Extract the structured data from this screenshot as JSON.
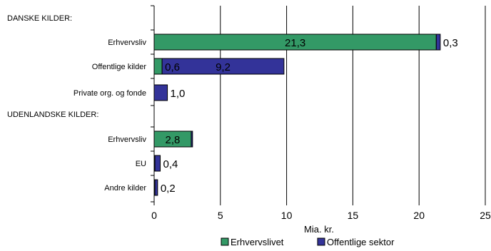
{
  "chart_data": {
    "type": "bar",
    "orientation": "horizontal",
    "stacked": true,
    "categories": [
      "DANSKE KILDER:",
      "Erhvervsliv",
      "Offentlige kilder",
      "Private org. og fonde",
      "UDENLANDSKE KILDER:",
      "Erhvervsliv",
      "EU",
      "Andre kilder"
    ],
    "section_headers": [
      0,
      4
    ],
    "series": [
      {
        "name": "Erhvervslivet",
        "color": "#339966",
        "values": [
          null,
          21.3,
          0.6,
          null,
          null,
          2.8,
          0.06,
          0.06
        ]
      },
      {
        "name": "Offentlige sektor",
        "color": "#333399",
        "values": [
          null,
          0.3,
          9.2,
          1.0,
          null,
          0.1,
          0.4,
          0.2
        ]
      }
    ],
    "data_labels": [
      {
        "row": 1,
        "text": "21,3",
        "position": "inside-series-0"
      },
      {
        "row": 1,
        "text": "0,3",
        "position": "outside-end"
      },
      {
        "row": 2,
        "text": "0,6",
        "position": "after-series-0"
      },
      {
        "row": 2,
        "text": "9,2",
        "position": "inside-series-1"
      },
      {
        "row": 3,
        "text": "1,0",
        "position": "outside-end"
      },
      {
        "row": 5,
        "text": "2,8",
        "position": "inside-series-0"
      },
      {
        "row": 6,
        "text": "0,4",
        "position": "outside-end"
      },
      {
        "row": 7,
        "text": "0,2",
        "position": "outside-end"
      }
    ],
    "x_ticks": [
      "0",
      "5",
      "10",
      "15",
      "20",
      "25"
    ],
    "xlabel": "Mia. kr.",
    "xlim": [
      0,
      25
    ],
    "grid": "vertical",
    "legend_position": "bottom"
  }
}
